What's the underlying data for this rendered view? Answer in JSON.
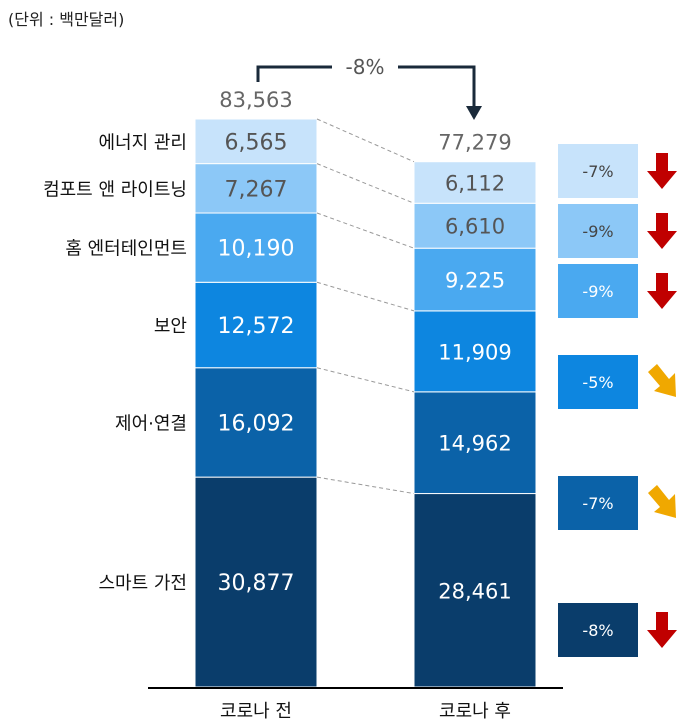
{
  "unit_label": "(단위 : 백만달러)",
  "change_label": "-8%",
  "chart_data": {
    "type": "bar",
    "stacked": true,
    "categories": [
      "코로나 전",
      "코로나 후"
    ],
    "totals": [
      "83,563",
      "77,279"
    ],
    "series": [
      {
        "name": "스마트 가전",
        "values": [
          30877,
          28461
        ],
        "labels": [
          "30,877",
          "28,461"
        ],
        "change": "-8%",
        "arrow": "down",
        "color": "#0a3d6b"
      },
      {
        "name": "제어·연결",
        "values": [
          16092,
          14962
        ],
        "labels": [
          "16,092",
          "14,962"
        ],
        "change": "-7%",
        "arrow": "diagonal",
        "color": "#0b62a8"
      },
      {
        "name": "보안",
        "values": [
          12572,
          11909
        ],
        "labels": [
          "12,572",
          "11,909"
        ],
        "change": "-5%",
        "arrow": "diagonal",
        "color": "#0d86e0"
      },
      {
        "name": "홈 엔터테인먼트",
        "values": [
          10190,
          9225
        ],
        "labels": [
          "10,190",
          "9,225"
        ],
        "change": "-9%",
        "arrow": "down",
        "color": "#4aa9f0"
      },
      {
        "name": "컴포트 앤 라이트닝",
        "values": [
          7267,
          6610
        ],
        "labels": [
          "7,267",
          "6,610"
        ],
        "change": "-9%",
        "arrow": "down",
        "color": "#8cc8f7"
      },
      {
        "name": "에너지 관리",
        "values": [
          6565,
          6112
        ],
        "labels": [
          "6,565",
          "6,112"
        ],
        "change": "-7%",
        "arrow": "down",
        "color": "#c7e3fb"
      }
    ],
    "colors": {
      "down_arrow": "#c00000",
      "diagonal_arrow": "#f0a800",
      "axis": "#000000",
      "connector": "#999999"
    }
  }
}
